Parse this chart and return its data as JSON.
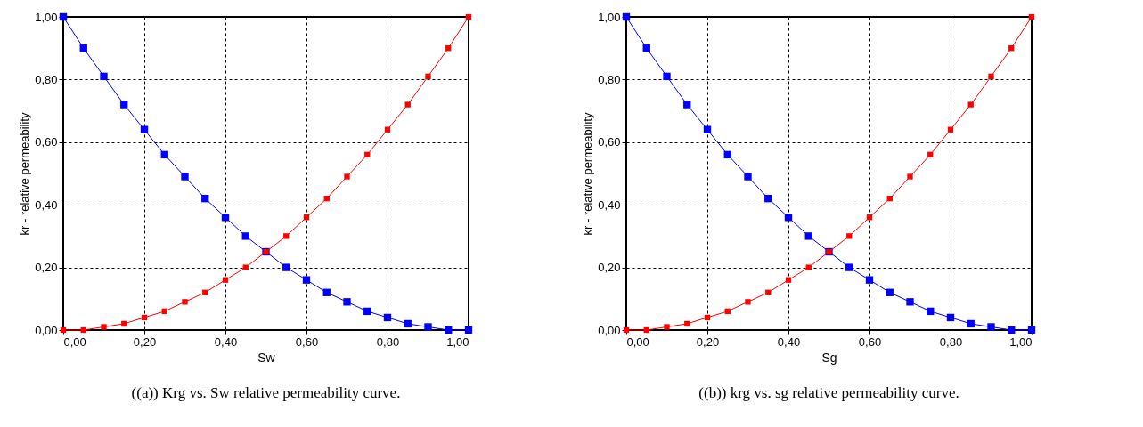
{
  "chart_data": [
    {
      "type": "line",
      "title": "((a)) Krg vs. Sw relative permeability curve.",
      "xlabel": "Sw",
      "ylabel": "kr - relative permeability",
      "x": [
        0,
        0.05,
        0.1,
        0.15,
        0.2,
        0.25,
        0.3,
        0.35,
        0.4,
        0.45,
        0.5,
        0.55,
        0.6,
        0.65,
        0.7,
        0.75,
        0.8,
        0.85,
        0.9,
        0.95,
        1
      ],
      "series": [
        {
          "color": "#0000ff",
          "values": [
            1,
            0.9,
            0.81,
            0.72,
            0.64,
            0.56,
            0.49,
            0.42,
            0.36,
            0.3,
            0.25,
            0.2,
            0.16,
            0.12,
            0.09,
            0.06,
            0.04,
            0.02,
            0.01,
            0,
            0
          ]
        },
        {
          "color": "#ff0000",
          "values": [
            0,
            0,
            0.01,
            0.02,
            0.04,
            0.06,
            0.09,
            0.12,
            0.16,
            0.2,
            0.25,
            0.3,
            0.36,
            0.42,
            0.49,
            0.56,
            0.64,
            0.72,
            0.81,
            0.9,
            1
          ]
        }
      ],
      "xlim": [
        0,
        1
      ],
      "ylim": [
        0,
        1
      ],
      "xticks": [
        {
          "value": 0,
          "label": "0,00"
        },
        {
          "value": 0.2,
          "label": "0,20"
        },
        {
          "value": 0.4,
          "label": "0,40"
        },
        {
          "value": 0.6,
          "label": "0,60"
        },
        {
          "value": 0.8,
          "label": "0,80"
        },
        {
          "value": 1,
          "label": "1,00"
        }
      ],
      "yticks": [
        {
          "value": 0,
          "label": "0,00"
        },
        {
          "value": 0.2,
          "label": "0,20"
        },
        {
          "value": 0.4,
          "label": "0,40"
        },
        {
          "value": 0.6,
          "label": "0,60"
        },
        {
          "value": 0.8,
          "label": "0,80"
        },
        {
          "value": 1,
          "label": "1,00"
        }
      ],
      "grid": true,
      "marker": "square",
      "legend": false
    },
    {
      "type": "line",
      "title": "((b)) krg vs. sg relative permeability curve.",
      "xlabel": "Sg",
      "ylabel": "kr - relative permeability",
      "x": [
        0,
        0.05,
        0.1,
        0.15,
        0.2,
        0.25,
        0.3,
        0.35,
        0.4,
        0.45,
        0.5,
        0.55,
        0.6,
        0.65,
        0.7,
        0.75,
        0.8,
        0.85,
        0.9,
        0.95,
        1
      ],
      "series": [
        {
          "color": "#0000ff",
          "values": [
            1,
            0.9,
            0.81,
            0.72,
            0.64,
            0.56,
            0.49,
            0.42,
            0.36,
            0.3,
            0.25,
            0.2,
            0.16,
            0.12,
            0.09,
            0.06,
            0.04,
            0.02,
            0.01,
            0,
            0
          ]
        },
        {
          "color": "#ff0000",
          "values": [
            0,
            0,
            0.01,
            0.02,
            0.04,
            0.06,
            0.09,
            0.12,
            0.16,
            0.2,
            0.25,
            0.3,
            0.36,
            0.42,
            0.49,
            0.56,
            0.64,
            0.72,
            0.81,
            0.9,
            1
          ]
        }
      ],
      "xlim": [
        0,
        1
      ],
      "ylim": [
        0,
        1
      ],
      "xticks": [
        {
          "value": 0,
          "label": "0,00"
        },
        {
          "value": 0.2,
          "label": "0,20"
        },
        {
          "value": 0.4,
          "label": "0,40"
        },
        {
          "value": 0.6,
          "label": "0,60"
        },
        {
          "value": 0.8,
          "label": "0,80"
        },
        {
          "value": 1,
          "label": "1,00"
        }
      ],
      "yticks": [
        {
          "value": 0,
          "label": "0,00"
        },
        {
          "value": 0.2,
          "label": "0,20"
        },
        {
          "value": 0.4,
          "label": "0,40"
        },
        {
          "value": 0.6,
          "label": "0,60"
        },
        {
          "value": 0.8,
          "label": "0,80"
        },
        {
          "value": 1,
          "label": "1,00"
        }
      ],
      "grid": true,
      "marker": "square",
      "legend": false
    }
  ]
}
